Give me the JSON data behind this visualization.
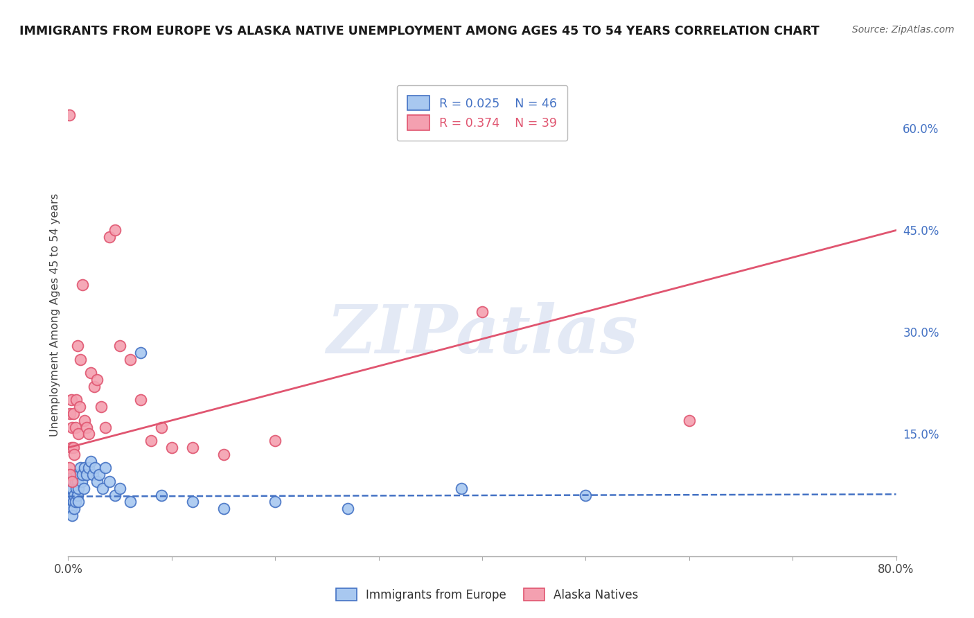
{
  "title": "IMMIGRANTS FROM EUROPE VS ALASKA NATIVE UNEMPLOYMENT AMONG AGES 45 TO 54 YEARS CORRELATION CHART",
  "source": "Source: ZipAtlas.com",
  "ylabel": "Unemployment Among Ages 45 to 54 years",
  "xlim": [
    0.0,
    0.8
  ],
  "ylim": [
    -0.03,
    0.68
  ],
  "xticks": [
    0.0,
    0.1,
    0.2,
    0.3,
    0.4,
    0.5,
    0.6,
    0.7,
    0.8
  ],
  "xticklabels": [
    "0.0%",
    "",
    "",
    "",
    "",
    "",
    "",
    "",
    "80.0%"
  ],
  "yticks_right": [
    0.15,
    0.3,
    0.45,
    0.6
  ],
  "ytick_right_labels": [
    "15.0%",
    "30.0%",
    "45.0%",
    "60.0%"
  ],
  "blue_R": "0.025",
  "blue_N": "46",
  "pink_R": "0.374",
  "pink_N": "39",
  "blue_label": "Immigrants from Europe",
  "pink_label": "Alaska Natives",
  "watermark": "ZIPatlas",
  "blue_color": "#a8c8f0",
  "pink_color": "#f4a0b0",
  "blue_line_color": "#4472c4",
  "pink_line_color": "#e05570",
  "title_color": "#1a1a1a",
  "source_color": "#666666",
  "right_axis_color": "#4472c4",
  "grid_color": "#cccccc",
  "background_color": "#ffffff",
  "blue_line_intercept": 0.058,
  "blue_line_slope": 0.004,
  "pink_line_intercept": 0.13,
  "pink_line_slope": 0.4,
  "blue_scatter_x": [
    0.001,
    0.002,
    0.002,
    0.003,
    0.003,
    0.004,
    0.004,
    0.005,
    0.005,
    0.006,
    0.006,
    0.007,
    0.007,
    0.008,
    0.008,
    0.009,
    0.009,
    0.01,
    0.01,
    0.011,
    0.012,
    0.013,
    0.014,
    0.015,
    0.016,
    0.018,
    0.02,
    0.022,
    0.024,
    0.026,
    0.028,
    0.03,
    0.033,
    0.036,
    0.04,
    0.045,
    0.05,
    0.06,
    0.07,
    0.09,
    0.12,
    0.15,
    0.2,
    0.27,
    0.38,
    0.5
  ],
  "blue_scatter_y": [
    0.06,
    0.05,
    0.07,
    0.04,
    0.08,
    0.03,
    0.07,
    0.05,
    0.09,
    0.04,
    0.06,
    0.08,
    0.05,
    0.07,
    0.09,
    0.06,
    0.08,
    0.05,
    0.07,
    0.09,
    0.1,
    0.08,
    0.09,
    0.07,
    0.1,
    0.09,
    0.1,
    0.11,
    0.09,
    0.1,
    0.08,
    0.09,
    0.07,
    0.1,
    0.08,
    0.06,
    0.07,
    0.05,
    0.27,
    0.06,
    0.05,
    0.04,
    0.05,
    0.04,
    0.07,
    0.06
  ],
  "pink_scatter_x": [
    0.001,
    0.001,
    0.002,
    0.002,
    0.003,
    0.003,
    0.004,
    0.004,
    0.005,
    0.005,
    0.006,
    0.007,
    0.008,
    0.009,
    0.01,
    0.011,
    0.012,
    0.014,
    0.016,
    0.018,
    0.02,
    0.022,
    0.025,
    0.028,
    0.032,
    0.036,
    0.04,
    0.045,
    0.05,
    0.06,
    0.07,
    0.08,
    0.09,
    0.1,
    0.12,
    0.15,
    0.2,
    0.4,
    0.6
  ],
  "pink_scatter_y": [
    0.62,
    0.1,
    0.18,
    0.09,
    0.13,
    0.2,
    0.16,
    0.08,
    0.13,
    0.18,
    0.12,
    0.16,
    0.2,
    0.28,
    0.15,
    0.19,
    0.26,
    0.37,
    0.17,
    0.16,
    0.15,
    0.24,
    0.22,
    0.23,
    0.19,
    0.16,
    0.44,
    0.45,
    0.28,
    0.26,
    0.2,
    0.14,
    0.16,
    0.13,
    0.13,
    0.12,
    0.14,
    0.33,
    0.17
  ]
}
